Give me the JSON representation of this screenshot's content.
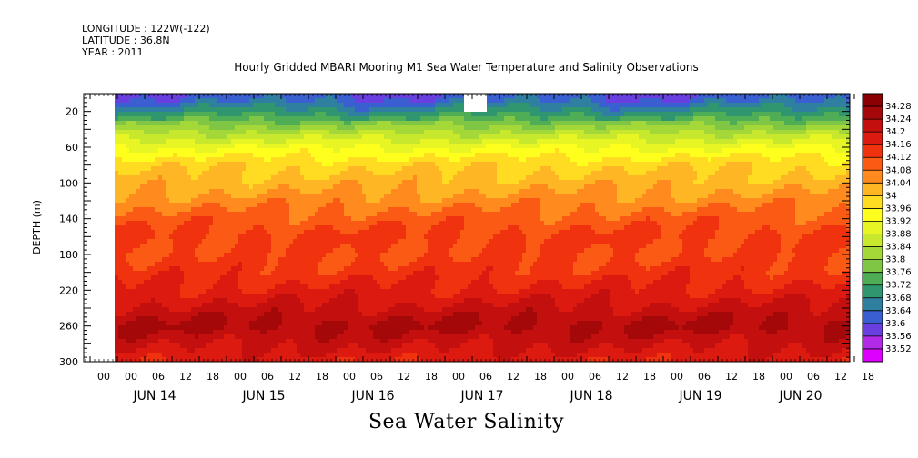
{
  "header": {
    "longitude": "LONGITUDE : 122W(-122)",
    "latitude": "LATITUDE : 36.8N",
    "year": "YEAR : 2011"
  },
  "chart_data": {
    "type": "heatmap",
    "title": "Hourly Gridded MBARI Mooring M1 Sea Water Temperature and Salinity Observations",
    "subtitle": "Sea Water Salinity",
    "ylabel": "DEPTH (m)",
    "ylim": [
      300,
      0
    ],
    "yticks": [
      20,
      60,
      100,
      140,
      180,
      220,
      260,
      300
    ],
    "x_hour_ticks": [
      "00",
      "00",
      "06",
      "12",
      "18",
      "00",
      "06",
      "12",
      "18",
      "00",
      "06",
      "12",
      "18",
      "00",
      "06",
      "12",
      "18",
      "00",
      "06",
      "12",
      "18",
      "00",
      "06",
      "12",
      "18",
      "00",
      "06",
      "12",
      "18"
    ],
    "x_day_labels": [
      "JUN 14",
      "JUN 15",
      "JUN 16",
      "JUN 17",
      "JUN 18",
      "JUN 19",
      "JUN 20"
    ],
    "colorbar": {
      "levels": [
        34.28,
        34.24,
        34.2,
        34.16,
        34.12,
        34.08,
        34.04,
        34,
        33.96,
        33.92,
        33.88,
        33.84,
        33.8,
        33.76,
        33.72,
        33.68,
        33.64,
        33.6,
        33.56,
        33.52
      ],
      "colors": [
        "#8b0000",
        "#a50808",
        "#c40f0f",
        "#dd1a10",
        "#f0320f",
        "#fa5a14",
        "#ff8a1e",
        "#ffb624",
        "#ffdc22",
        "#ffff1e",
        "#e8f525",
        "#c8e82e",
        "#a4d838",
        "#7fc644",
        "#4fae55",
        "#2f9670",
        "#2f7fa0",
        "#3a5fd0",
        "#6a3fe0",
        "#b02ae8",
        "#dd00ff"
      ]
    },
    "depth_profile": [
      {
        "depth": 5,
        "value": 33.62
      },
      {
        "depth": 20,
        "value": 33.7
      },
      {
        "depth": 40,
        "value": 33.82
      },
      {
        "depth": 60,
        "value": 33.92
      },
      {
        "depth": 80,
        "value": 33.99
      },
      {
        "depth": 100,
        "value": 34.02
      },
      {
        "depth": 120,
        "value": 34.06
      },
      {
        "depth": 140,
        "value": 34.1
      },
      {
        "depth": 160,
        "value": 34.13
      },
      {
        "depth": 180,
        "value": 34.12
      },
      {
        "depth": 200,
        "value": 34.14
      },
      {
        "depth": 220,
        "value": 34.17
      },
      {
        "depth": 240,
        "value": 34.21
      },
      {
        "depth": 260,
        "value": 34.25
      },
      {
        "depth": 280,
        "value": 34.21
      },
      {
        "depth": 300,
        "value": 34.17
      }
    ]
  }
}
